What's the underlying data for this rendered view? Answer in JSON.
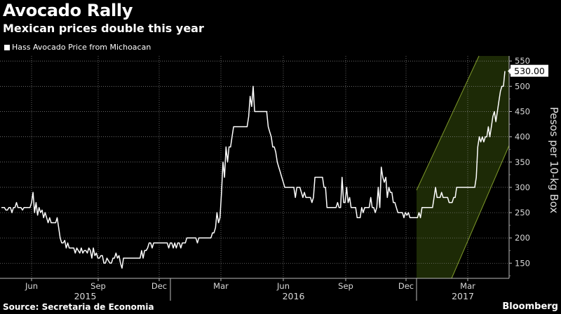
{
  "header": {
    "title": "Avocado Rally",
    "subtitle": "Mexican prices double this year"
  },
  "footer": {
    "source": "Source: Secretaria de Economia",
    "brand": "Bloomberg"
  },
  "colors": {
    "line": "#ffffff",
    "channel_fill": "#1d2a06",
    "channel_edge": "#7f9a2a",
    "grid": "#8a8a8a",
    "callout_bg": "#ffffff",
    "callout_text": "#000000"
  },
  "chart_data": {
    "type": "line",
    "title": "Avocado Rally",
    "subtitle": "Mexican prices double this year",
    "ylabel": "Pesos per 10-kg Box",
    "ylim": [
      120,
      560
    ],
    "yticks": [
      150,
      200,
      250,
      300,
      350,
      400,
      450,
      500,
      550
    ],
    "month_ticks": [
      "Jun",
      "Sep",
      "Dec",
      "Mar",
      "Jun",
      "Sep",
      "Dec",
      "Mar"
    ],
    "years": [
      "2015",
      "2016",
      "2017"
    ],
    "grid": true,
    "legend_position": "top-left",
    "last_value_label": "530.00",
    "series": [
      {
        "name": "Hass Avocado Price from Michoacan",
        "values": [
          260,
          260,
          260,
          255,
          255,
          260,
          260,
          250,
          260,
          260,
          270,
          260,
          260,
          260,
          255,
          260,
          260,
          260,
          260,
          260,
          270,
          290,
          250,
          270,
          245,
          260,
          250,
          255,
          240,
          250,
          240,
          230,
          240,
          230,
          230,
          230,
          230,
          240,
          220,
          200,
          190,
          190,
          195,
          180,
          190,
          180,
          180,
          180,
          180,
          170,
          180,
          175,
          170,
          180,
          170,
          175,
          175,
          170,
          180,
          175,
          160,
          180,
          165,
          170,
          160,
          160,
          165,
          165,
          150,
          150,
          160,
          155,
          150,
          150,
          160,
          160,
          170,
          160,
          165,
          150,
          140,
          160,
          160,
          160,
          160,
          160,
          160,
          160,
          160,
          160,
          160,
          160,
          160,
          175,
          160,
          175,
          175,
          180,
          190,
          190,
          180,
          190,
          190,
          190,
          190,
          190,
          190,
          190,
          190,
          190,
          190,
          180,
          190,
          190,
          180,
          190,
          180,
          190,
          190,
          180,
          190,
          190,
          190,
          200,
          200,
          200,
          200,
          200,
          200,
          200,
          190,
          200,
          200,
          200,
          200,
          200,
          200,
          200,
          200,
          200,
          210,
          210,
          220,
          250,
          230,
          240,
          290,
          350,
          320,
          380,
          350,
          380,
          380,
          400,
          420,
          420,
          420,
          420,
          420,
          420,
          420,
          420,
          420,
          420,
          440,
          480,
          460,
          500,
          450,
          450,
          450,
          450,
          450,
          450,
          450,
          450,
          450,
          420,
          410,
          400,
          380,
          380,
          370,
          350,
          340,
          330,
          320,
          310,
          300,
          300,
          300,
          300,
          300,
          300,
          300,
          280,
          300,
          300,
          300,
          290,
          280,
          290,
          280,
          280,
          280,
          280,
          270,
          280,
          320,
          320,
          320,
          320,
          320,
          320,
          300,
          300,
          260,
          260,
          260,
          260,
          260,
          260,
          260,
          270,
          260,
          260,
          320,
          270,
          270,
          300,
          270,
          280,
          260,
          260,
          260,
          260,
          240,
          240,
          240,
          260,
          250,
          260,
          260,
          260,
          260,
          280,
          260,
          260,
          250,
          260,
          300,
          260,
          340,
          320,
          310,
          320,
          280,
          300,
          290,
          290,
          270,
          270,
          260,
          250,
          250,
          250,
          250,
          240,
          250,
          245,
          250,
          240,
          240,
          240,
          240,
          240,
          240,
          250,
          240,
          260,
          260,
          260,
          260,
          260,
          260,
          260,
          260,
          280,
          300,
          280,
          280,
          280,
          290,
          280,
          280,
          280,
          280,
          270,
          270,
          270,
          280,
          280,
          300,
          300,
          300,
          300,
          300,
          300,
          300,
          300,
          300,
          300,
          300,
          300,
          300,
          320,
          380,
          400,
          390,
          400,
          390,
          400,
          400,
          420,
          400,
          420,
          440,
          450,
          430,
          450,
          470,
          490,
          500,
          500,
          530
        ]
      }
    ]
  }
}
